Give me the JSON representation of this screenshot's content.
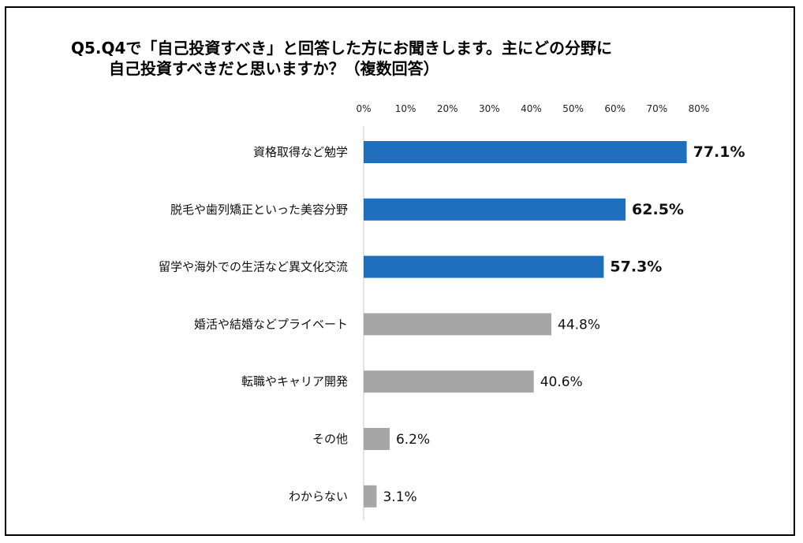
{
  "chart_data": {
    "type": "bar",
    "orientation": "horizontal",
    "title_line1": "Q5.Q4で「自己投資すべき」と回答した方にお聞きします。主にどの分野に",
    "title_line2": "自己投資すべきだと思いますか？（複数回答）",
    "x_ticks": [
      "0%",
      "10%",
      "20%",
      "30%",
      "40%",
      "50%",
      "60%",
      "70%",
      "80%"
    ],
    "xlim": [
      0,
      80
    ],
    "grid": false,
    "categories": [
      "資格取得など勉学",
      "脱毛や歯列矯正といった美容分野",
      "留学や海外での生活など異文化交流",
      "婚活や結婚などプライベート",
      "転職やキャリア開発",
      "その他",
      "わからない"
    ],
    "values": [
      77.1,
      62.5,
      57.3,
      44.8,
      40.6,
      6.2,
      3.1
    ],
    "labels": [
      "77.1%",
      "62.5%",
      "57.3%",
      "44.8%",
      "40.6%",
      "6.2%",
      "3.1%"
    ],
    "highlight": [
      true,
      true,
      true,
      false,
      false,
      false,
      false
    ],
    "colors": {
      "highlight": "#1f6fbf",
      "normal": "#a6a6a6",
      "axis": "#c8c8c8"
    }
  }
}
